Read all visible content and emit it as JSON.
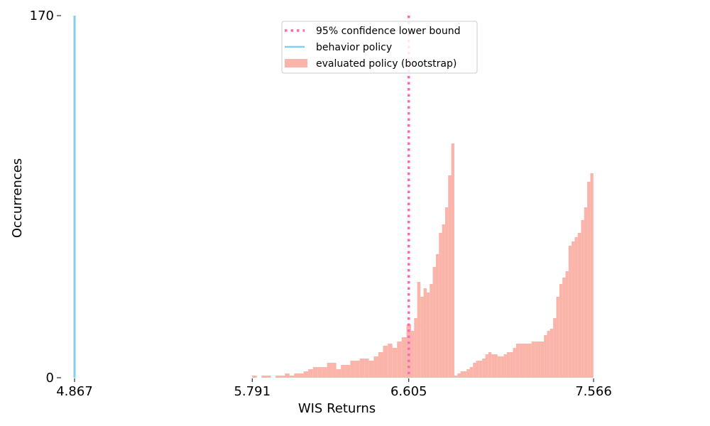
{
  "chart_data": {
    "type": "bar",
    "xlabel": "WIS Returns",
    "ylabel": "Occurrences",
    "xlim": [
      4.867,
      7.566
    ],
    "ylim": [
      0,
      170
    ],
    "x_ticks": [
      "4.867",
      "5.791",
      "6.605",
      "7.566"
    ],
    "y_ticks": [
      "0",
      "170"
    ],
    "grid": false,
    "legend_position": "top-center",
    "behavior_policy_value": 4.867,
    "confidence_lower_bound": 6.605,
    "histogram_bin_width": 0.0161,
    "histogram": {
      "bin_starts": [
        5.791,
        5.815,
        5.839,
        5.864,
        5.888,
        5.912,
        5.937,
        5.961,
        5.985,
        6.009,
        6.034,
        6.058,
        6.082,
        6.107,
        6.131,
        6.155,
        6.18,
        6.204,
        6.228,
        6.252,
        6.277,
        6.301,
        6.325,
        6.35,
        6.374,
        6.398,
        6.423,
        6.447,
        6.471,
        6.496,
        6.52,
        6.544,
        6.568,
        6.593,
        6.617,
        6.633,
        6.649,
        6.666,
        6.682,
        6.698,
        6.714,
        6.73,
        6.746,
        6.762,
        6.778,
        6.794,
        6.81,
        6.826,
        6.842,
        6.858,
        6.874,
        6.89,
        6.906,
        6.922,
        6.939,
        6.955,
        6.971,
        6.987,
        7.003,
        7.019,
        7.035,
        7.051,
        7.067,
        7.083,
        7.099,
        7.115,
        7.131,
        7.147,
        7.163,
        7.179,
        7.195,
        7.212,
        7.228,
        7.244,
        7.26,
        7.276,
        7.292,
        7.308,
        7.324,
        7.34,
        7.356,
        7.372,
        7.388,
        7.404,
        7.42,
        7.436,
        7.452,
        7.468,
        7.484,
        7.501,
        7.517,
        7.533,
        7.549
      ],
      "counts": [
        1,
        0,
        1,
        1,
        0,
        1,
        1,
        2,
        1,
        2,
        2,
        3,
        4,
        5,
        5,
        5,
        7,
        7,
        4,
        6,
        6,
        8,
        8,
        9,
        9,
        8,
        10,
        12,
        15,
        16,
        14,
        17,
        19,
        25,
        22,
        28,
        45,
        38,
        42,
        40,
        44,
        52,
        58,
        68,
        72,
        80,
        95,
        110,
        1,
        2,
        3,
        3,
        4,
        5,
        7,
        8,
        8,
        9,
        11,
        12,
        11,
        11,
        10,
        10,
        11,
        12,
        12,
        14,
        16,
        16,
        16,
        16,
        16,
        17,
        17,
        17,
        17,
        20,
        22,
        23,
        28,
        38,
        44,
        47,
        50,
        62,
        64,
        66,
        68,
        74,
        80,
        92,
        96
      ]
    }
  },
  "legend": {
    "items": [
      {
        "label": "95% confidence lower bound",
        "color": "#FF69B4",
        "style": "dotted-line"
      },
      {
        "label": "behavior policy",
        "color": "#87CEEB",
        "style": "line"
      },
      {
        "label": "evaluated policy (bootstrap)",
        "color": "#FA8072",
        "style": "patch"
      }
    ]
  },
  "colors": {
    "histogram": "#FA8072",
    "behavior_policy": "#87CEEB",
    "confidence_bound": "#FF69B4"
  }
}
